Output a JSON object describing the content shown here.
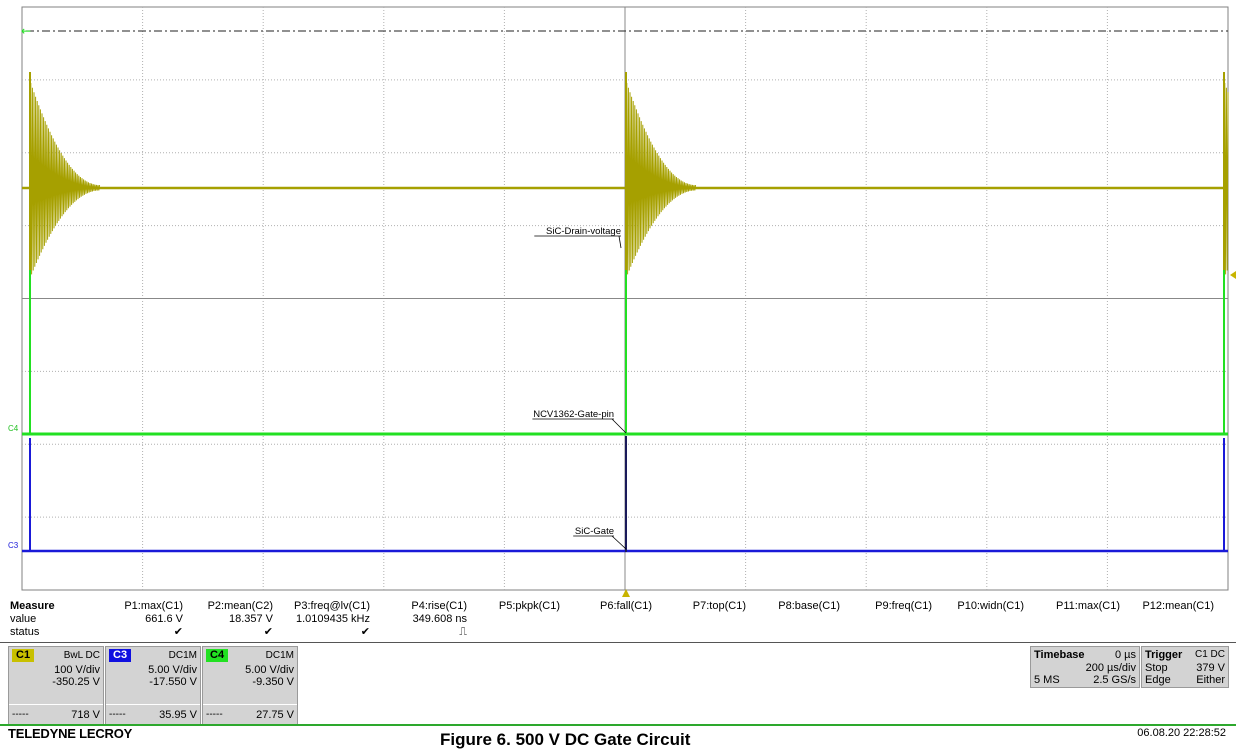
{
  "waveform_labels": {
    "drain": "SiC-Drain-voltage",
    "gate_pin": "NCV1362-Gate-pin",
    "sic_gate": "SiC-Gate",
    "c4_marker": "C4",
    "c3_marker": "C3"
  },
  "colors": {
    "c1": "#a6a000",
    "c3": "#1a1ad8",
    "c4": "#22e022",
    "grid": "#9a9a9a",
    "c1_tag": "#c8c000",
    "c3_tag": "#1010e0",
    "c4_tag": "#22e022"
  },
  "measure": {
    "header_label": "Measure",
    "value_label": "value",
    "status_label": "status",
    "columns": [
      {
        "name": "P1:max(C1)",
        "value": "661.6 V",
        "status": "✔"
      },
      {
        "name": "P2:mean(C2)",
        "value": "18.357 V",
        "status": "✔"
      },
      {
        "name": "P3:freq@lv(C1)",
        "value": "1.0109435 kHz",
        "status": "✔"
      },
      {
        "name": "P4:rise(C1)",
        "value": "349.608 ns",
        "status": "⎍"
      },
      {
        "name": "P5:pkpk(C1)",
        "value": "",
        "status": ""
      },
      {
        "name": "P6:fall(C1)",
        "value": "",
        "status": ""
      },
      {
        "name": "P7:top(C1)",
        "value": "",
        "status": ""
      },
      {
        "name": "P8:base(C1)",
        "value": "",
        "status": ""
      },
      {
        "name": "P9:freq(C1)",
        "value": "",
        "status": ""
      },
      {
        "name": "P10:widn(C1)",
        "value": "",
        "status": ""
      },
      {
        "name": "P11:max(C1)",
        "value": "",
        "status": ""
      },
      {
        "name": "P12:mean(C1)",
        "value": "",
        "status": ""
      }
    ]
  },
  "channels": [
    {
      "tag": "C1",
      "coupling": "BwL DC",
      "vdiv": "100 V/div",
      "offset": "-350.25 V",
      "dash": "-----",
      "level": "718 V"
    },
    {
      "tag": "C3",
      "coupling": "DC1M",
      "vdiv": "5.00 V/div",
      "offset": "-17.550 V",
      "dash": "-----",
      "level": "35.95 V"
    },
    {
      "tag": "C4",
      "coupling": "DC1M",
      "vdiv": "5.00 V/div",
      "offset": "-9.350 V",
      "dash": "-----",
      "level": "27.75 V"
    }
  ],
  "timebase": {
    "label": "Timebase",
    "delay": "0 µs",
    "tdiv": "200 µs/div",
    "samples": "5 MS",
    "rate": "2.5 GS/s"
  },
  "trigger": {
    "label": "Trigger",
    "source": "C1 DC",
    "mode": "Stop",
    "level": "379 V",
    "type": "Edge",
    "slope": "Either"
  },
  "footer": {
    "brand": "TELEDYNE LECROY",
    "timestamp": "06.08.20 22:28:52",
    "caption": "Figure 6. 500 V DC Gate Circuit"
  }
}
